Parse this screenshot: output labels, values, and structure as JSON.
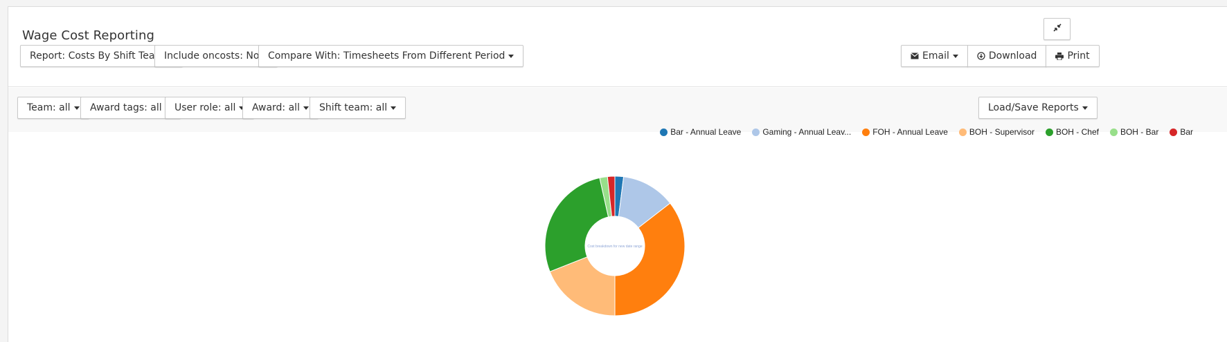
{
  "header": {
    "title": "Wage Cost Reporting",
    "report_label": "Report: Costs By Shift Team",
    "oncosts_label": "Include oncosts: No",
    "compare_label": "Compare With: Timesheets From Different Period",
    "expand_icon": "expand-icon",
    "actions": {
      "email_label": "Email",
      "download_label": "Download",
      "print_label": "Print"
    }
  },
  "filters": {
    "team_label": "Team: all",
    "award_tags_label": "Award tags: all",
    "user_role_label": "User role: all",
    "award_label": "Award: all",
    "shift_team_label": "Shift team: all",
    "load_save_label": "Load/Save Reports"
  },
  "chart_data": {
    "type": "pie",
    "donut": true,
    "center_text": "Cost breakdown for new date range",
    "legend_position": "top-right",
    "series": [
      {
        "name": "Bar - Annual Leave",
        "legend_label": "Bar - Annual Leave",
        "value": 2.0,
        "color": "#1f77b4"
      },
      {
        "name": "Gaming - Annual Leave",
        "legend_label": "Gaming - Annual Leav...",
        "value": 12.5,
        "color": "#aec7e8"
      },
      {
        "name": "FOH - Annual Leave",
        "legend_label": "FOH - Annual Leave",
        "value": 35.5,
        "color": "#ff7f0e"
      },
      {
        "name": "BOH - Supervisor",
        "legend_label": "BOH - Supervisor",
        "value": 19.0,
        "color": "#ffbb78"
      },
      {
        "name": "BOH - Chef",
        "legend_label": "BOH - Chef",
        "value": 27.5,
        "color": "#2ca02c"
      },
      {
        "name": "BOH - Bar",
        "legend_label": "BOH - Bar",
        "value": 1.8,
        "color": "#98df8a"
      },
      {
        "name": "Bar",
        "legend_label": "Bar",
        "value": 1.7,
        "color": "#d62728"
      }
    ]
  }
}
